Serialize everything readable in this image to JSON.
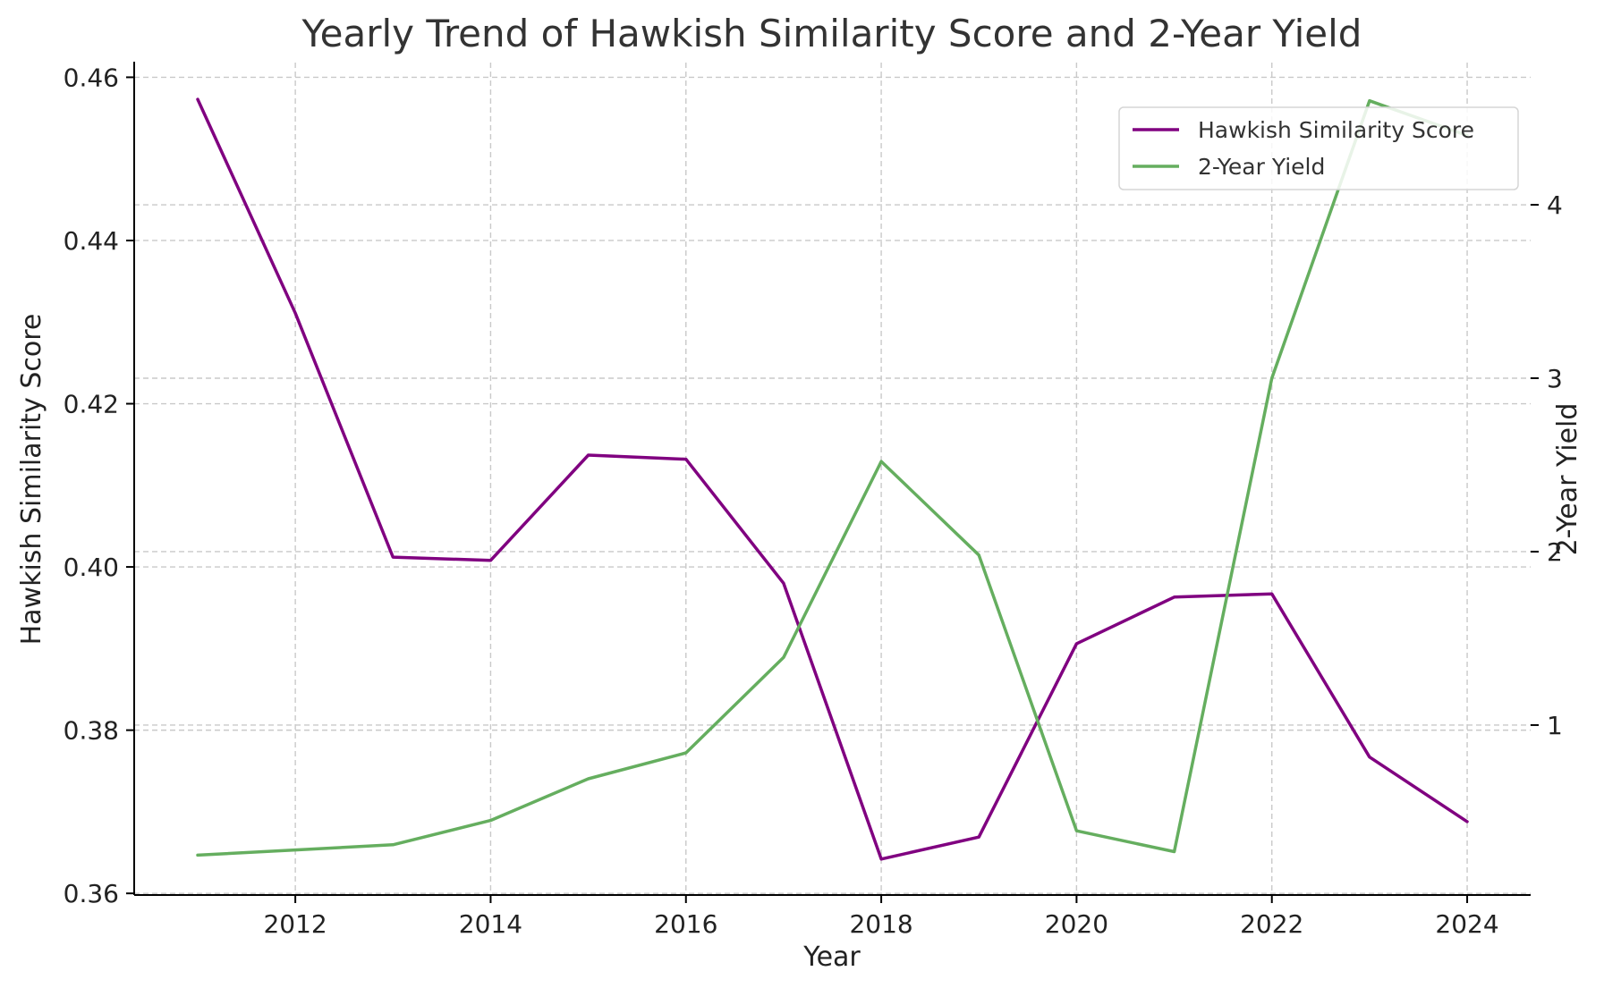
{
  "chart_data": {
    "type": "line",
    "title": "Yearly Trend of Hawkish Similarity Score and 2-Year Yield",
    "xlabel": "Year",
    "ylabel_left": "Hawkish Similarity Score",
    "ylabel_right": "2-Year Yield",
    "x": [
      2011,
      2012,
      2013,
      2014,
      2015,
      2016,
      2017,
      2018,
      2019,
      2020,
      2021,
      2022,
      2023,
      2024
    ],
    "xlim": [
      2010.35,
      2024.65
    ],
    "ylim_left": [
      0.3598,
      0.4618
    ],
    "ylim_right": [
      0.02,
      4.82
    ],
    "x_ticks": [
      2012,
      2014,
      2016,
      2018,
      2020,
      2022,
      2024
    ],
    "y_ticks_left": [
      0.36,
      0.38,
      0.4,
      0.42,
      0.44,
      0.46
    ],
    "y_tick_labels_left": [
      "0.36",
      "0.38",
      "0.40",
      "0.42",
      "0.44",
      "0.46"
    ],
    "y_ticks_right": [
      1,
      2,
      3,
      4
    ],
    "y_tick_labels_right": [
      "1",
      "2",
      "3",
      "4"
    ],
    "grid": true,
    "legend_position": "top-right",
    "series": [
      {
        "name": "Hawkish Similarity Score",
        "axis": "left",
        "color": "#800080",
        "values": [
          0.4573,
          0.4311,
          0.4012,
          0.4008,
          0.4137,
          0.4132,
          0.398,
          0.3642,
          0.3669,
          0.3906,
          0.3963,
          0.3967,
          0.3767,
          0.3688
        ]
      },
      {
        "name": "2-Year Yield",
        "axis": "right",
        "color": "#65ae5f",
        "values": [
          0.25,
          0.28,
          0.31,
          0.45,
          0.69,
          0.84,
          1.39,
          2.52,
          1.98,
          0.39,
          0.27,
          3.0,
          4.6,
          4.4
        ]
      }
    ]
  }
}
